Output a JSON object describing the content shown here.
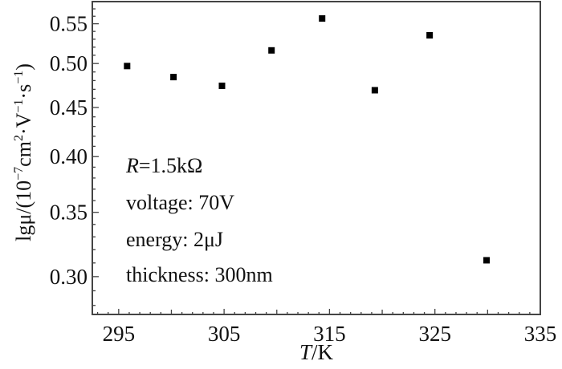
{
  "chart_data": {
    "type": "scatter",
    "title": "",
    "xlabel_italic": "T",
    "xlabel_rest": "/K",
    "ylabel_parts": {
      "prefix": "lgμ/(10",
      "e1": "−7",
      "m1": "cm",
      "e2": "2",
      "m2": "·V",
      "e3": "−1",
      "m3": "·s",
      "e4": "−1",
      "suffix": ")"
    },
    "xlim": [
      292.5,
      335
    ],
    "ylim": [
      0.274,
      0.58
    ],
    "yscale": "log",
    "xticks": [
      295,
      305,
      315,
      325,
      335
    ],
    "xtick_labels": [
      "295",
      "305",
      "315",
      "325",
      "335"
    ],
    "yticks": [
      0.3,
      0.35,
      0.4,
      0.45,
      0.5,
      0.55
    ],
    "ytick_labels": [
      "0.30",
      "0.35",
      "0.40",
      "0.45",
      "0.50",
      "0.55"
    ],
    "grid": false,
    "marker": "square",
    "marker_color": "#000000",
    "x": [
      295.8,
      300.2,
      304.8,
      309.5,
      314.3,
      319.3,
      324.5,
      329.9
    ],
    "y": [
      0.497,
      0.484,
      0.474,
      0.516,
      0.557,
      0.469,
      0.535,
      0.312
    ],
    "annotations": {
      "r_italic": "R",
      "r_rest": "=1.5kΩ",
      "voltage": "voltage: 70V",
      "energy": "energy: 2μJ",
      "thickness": "thickness: 300nm"
    }
  }
}
